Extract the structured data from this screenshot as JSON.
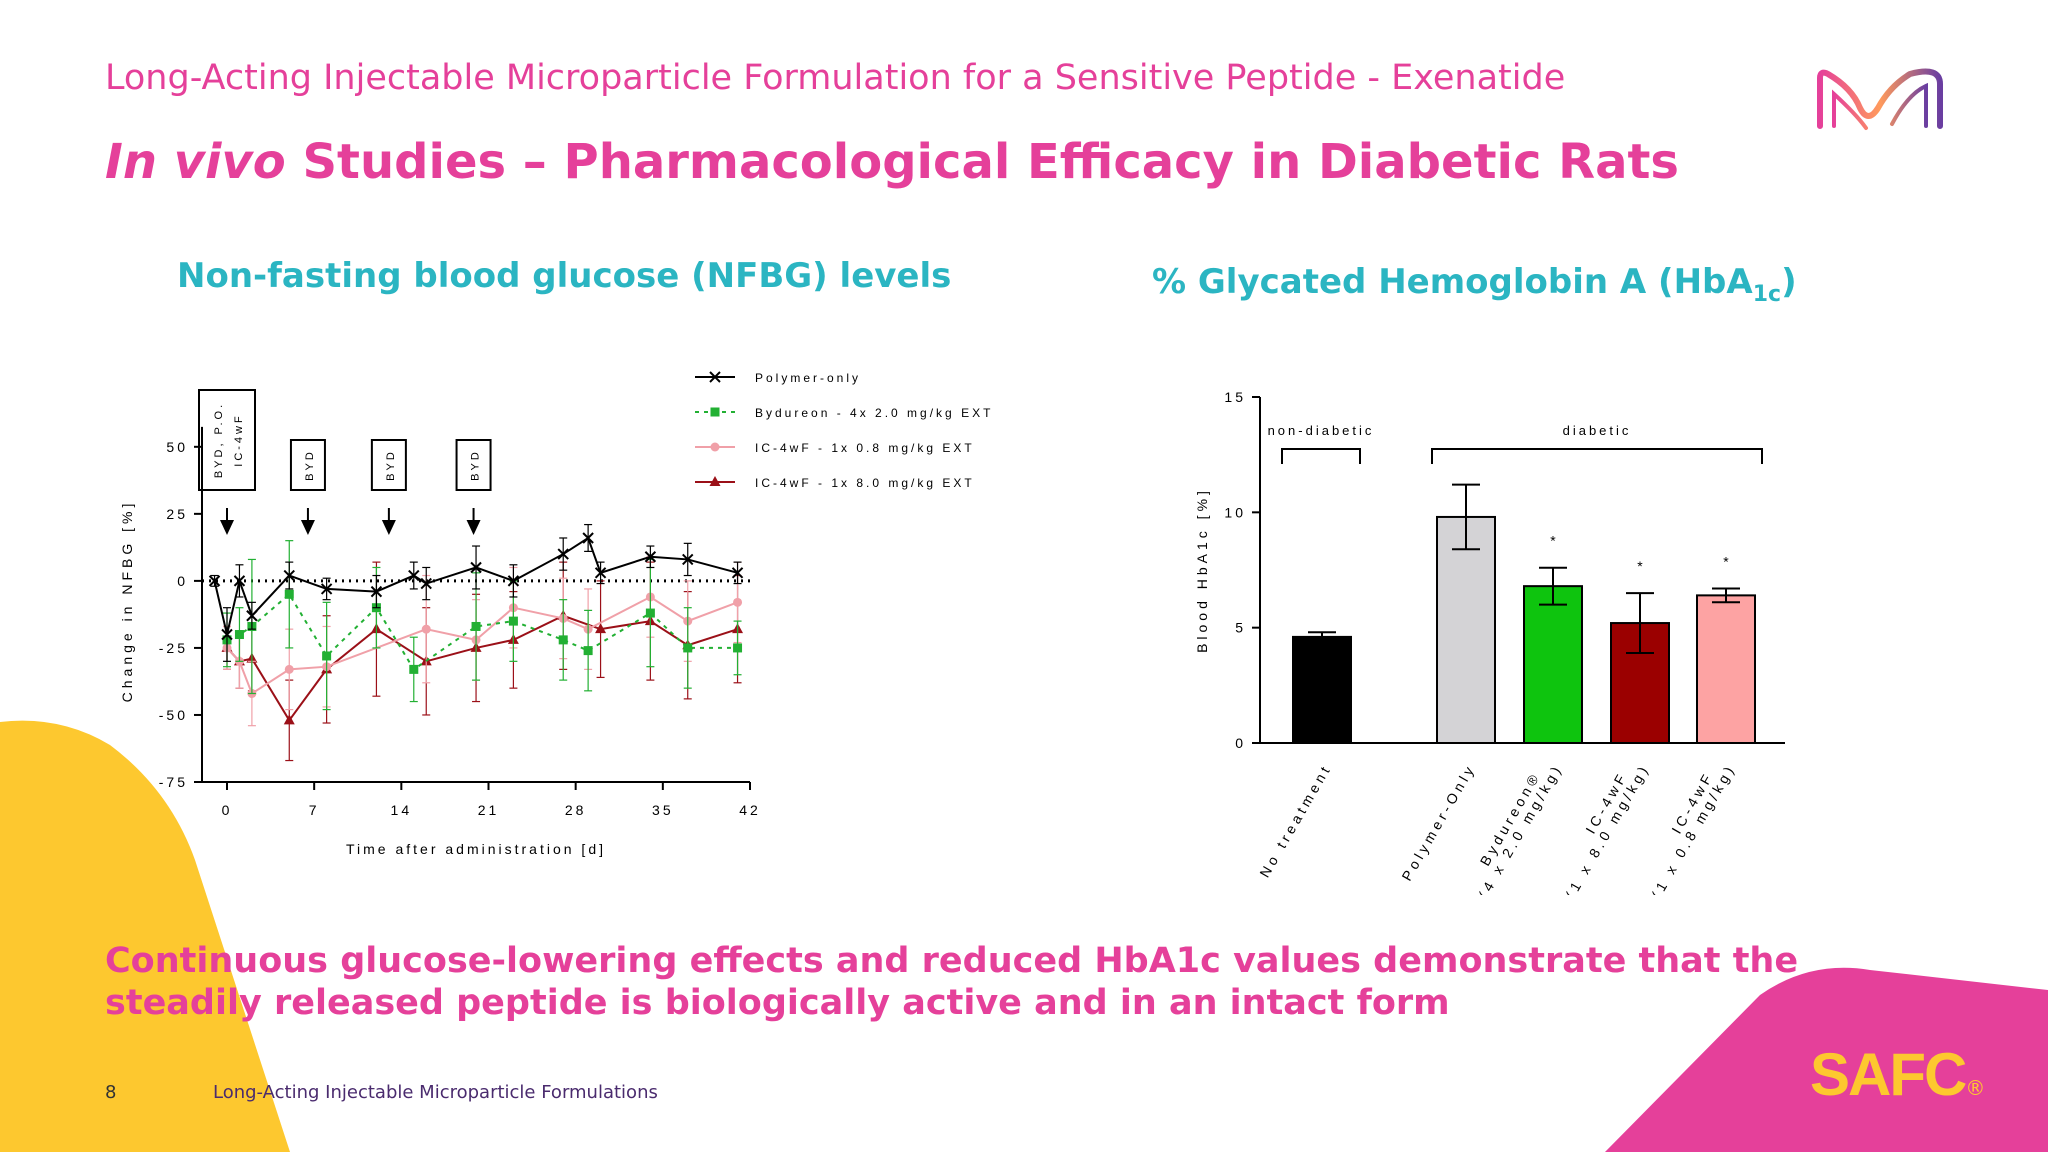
{
  "header": {
    "subtitle": "Long-Acting Injectable Microparticle Formulation for a Sensitive Peptide - Exenatide",
    "title_italic": "In vivo",
    "title_rest": " Studies – Pharmacological Efficacy in Diabetic Rats"
  },
  "left_panel": {
    "heading": "Non-fasting blood glucose (NFBG) levels"
  },
  "right_panel": {
    "heading_main": "% Glycated Hemoglobin A (HbA",
    "heading_sub": "1c",
    "heading_end": ")"
  },
  "conclusion": "Continuous glucose-lowering effects and reduced HbA1c values demonstrate that the steadily released peptide is biologically active and in an intact form",
  "footer": {
    "page": "8",
    "text": "Long-Acting Injectable Microparticle Formulations",
    "brand": "SAFC",
    "reg": "®"
  },
  "colors": {
    "magenta": "#e5409a",
    "teal": "#2bb5c2",
    "yellow": "#fdc82f",
    "purple": "#4a2b6e"
  },
  "chart_data": [
    {
      "type": "line",
      "xlabel": "Time after administration [d]",
      "ylabel": "Change in NFBG [%]",
      "xlim": [
        -3,
        42
      ],
      "ylim": [
        -75,
        60
      ],
      "xticks": [
        0,
        7,
        14,
        21,
        28,
        35,
        42
      ],
      "yticks": [
        -75,
        -50,
        -25,
        0,
        25,
        50
      ],
      "legend_position": "top-right",
      "annotations": [
        {
          "x": 0,
          "lines": [
            "BYD, P.O.",
            "IC-4wF"
          ]
        },
        {
          "x": 6.5,
          "lines": [
            "BYD"
          ]
        },
        {
          "x": 13,
          "lines": [
            "BYD"
          ]
        },
        {
          "x": 19.8,
          "lines": [
            "BYD"
          ]
        }
      ],
      "series": [
        {
          "name": "Polymer-only",
          "color": "#000000",
          "marker": "x",
          "dash": "solid",
          "x": [
            -1,
            0,
            1,
            2,
            5,
            8,
            12,
            15,
            16,
            20,
            23,
            27,
            29,
            30,
            34,
            37,
            41
          ],
          "y": [
            0,
            -20,
            0,
            -13,
            2,
            -3,
            -4,
            2,
            -1,
            5,
            0,
            10,
            16,
            3,
            9,
            8,
            3
          ],
          "err": [
            2,
            10,
            6,
            5,
            5,
            4,
            6,
            5,
            6,
            8,
            6,
            6,
            5,
            4,
            4,
            6,
            4
          ]
        },
        {
          "name": "Bydureon - 4x 2.0 mg/kg EXT",
          "color": "#22b033",
          "marker": "square",
          "dash": "dotted",
          "x": [
            0,
            1,
            2,
            5,
            8,
            12,
            15,
            20,
            23,
            27,
            29,
            34,
            37,
            41
          ],
          "y": [
            -22,
            -20,
            -17,
            -5,
            -28,
            -10,
            -33,
            -17,
            -15,
            -22,
            -26,
            -12,
            -25,
            -25
          ],
          "err": [
            10,
            10,
            25,
            20,
            20,
            15,
            12,
            20,
            15,
            15,
            15,
            20,
            15,
            10
          ]
        },
        {
          "name": "IC-4wF - 1x 0.8 mg/kg EXT",
          "color": "#f0a0a8",
          "marker": "circle",
          "dash": "solid",
          "x": [
            0,
            1,
            2,
            5,
            8,
            16,
            20,
            23,
            27,
            29,
            34,
            37,
            41
          ],
          "y": [
            -25,
            -30,
            -42,
            -33,
            -32,
            -18,
            -22,
            -10,
            -14,
            -18,
            -6,
            -15,
            -8
          ],
          "err": [
            8,
            10,
            12,
            15,
            15,
            20,
            15,
            15,
            15,
            15,
            15,
            15,
            15
          ]
        },
        {
          "name": "IC-4wF - 1x 8.0 mg/kg EXT",
          "color": "#9b1018",
          "marker": "triangle",
          "dash": "solid",
          "x": [
            0,
            1,
            2,
            5,
            8,
            12,
            16,
            20,
            23,
            27,
            30,
            34,
            37,
            41
          ],
          "y": [
            -25,
            -30,
            -29,
            -52,
            -33,
            -18,
            -30,
            -25,
            -22,
            -13,
            -18,
            -15,
            -24,
            -18
          ],
          "err": [
            8,
            10,
            12,
            15,
            20,
            25,
            20,
            20,
            18,
            20,
            18,
            22,
            20,
            20
          ]
        }
      ]
    },
    {
      "type": "bar",
      "ylabel": "Blood HbA1c [%]",
      "ylim": [
        0,
        15
      ],
      "yticks": [
        0,
        5,
        10,
        15
      ],
      "groups": [
        "non-diabetic",
        "diabetic"
      ],
      "categories": [
        "No treatment",
        "Polymer-Only",
        "Bydureon® (4 x 2.0 mg/kg)",
        "IC-4wF (1 x 8.0 mg/kg)",
        "IC-4wF (1 x 0.8 mg/kg)"
      ],
      "values": [
        4.6,
        9.8,
        6.8,
        5.2,
        6.4
      ],
      "errors": [
        0.2,
        1.4,
        0.8,
        1.3,
        0.3
      ],
      "colors": [
        "#000000",
        "#d4d3d6",
        "#0ec40e",
        "#9b0000",
        "#fda3a3"
      ],
      "significance": [
        "",
        "",
        "*",
        "*",
        "*"
      ]
    }
  ]
}
